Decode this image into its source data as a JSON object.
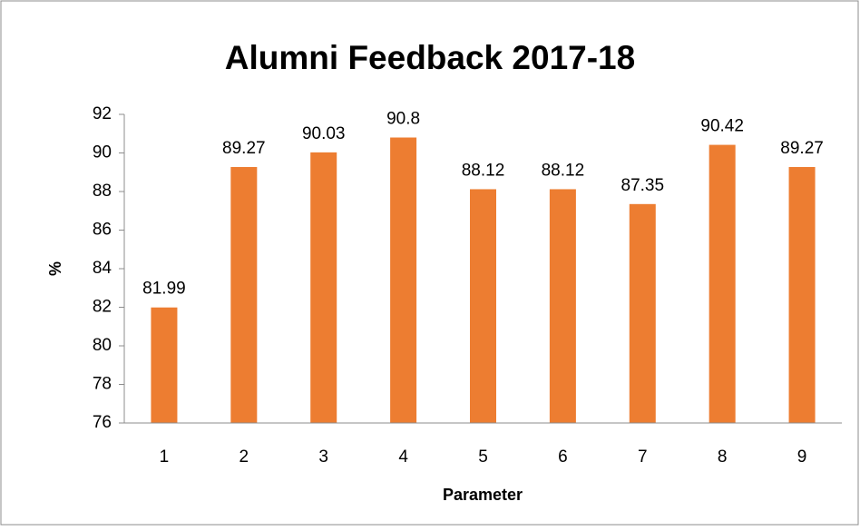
{
  "chart_data": {
    "type": "bar",
    "title": "Alumni Feedback 2017-18",
    "x_label": "Parameter",
    "y_label": "%",
    "categories": [
      "1",
      "2",
      "3",
      "4",
      "5",
      "6",
      "7",
      "8",
      "9"
    ],
    "values": [
      81.99,
      89.27,
      90.03,
      90.8,
      88.12,
      88.12,
      87.35,
      90.42,
      89.27
    ],
    "color": "#ed7d31",
    "ylim": [
      76,
      92
    ],
    "yticks": [
      76,
      78,
      80,
      82,
      84,
      86,
      88,
      90,
      92
    ],
    "grid": false
  }
}
